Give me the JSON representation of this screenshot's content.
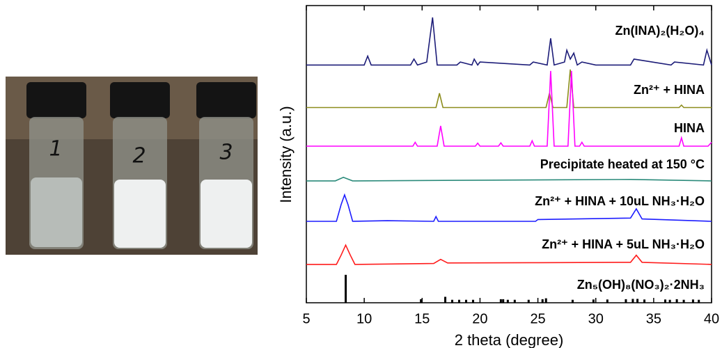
{
  "photo": {
    "vial_labels": [
      "1",
      "2",
      "3"
    ]
  },
  "chart_data": {
    "type": "line",
    "xlabel": "2 theta (degree)",
    "ylabel": "Intensity (a.u.)",
    "xlim": [
      5,
      40
    ],
    "xticks": [
      5,
      10,
      15,
      20,
      25,
      30,
      35,
      40
    ],
    "ylim": [
      0,
      100
    ],
    "series": [
      {
        "name": "Zn(INA)₂(H₂O)₄",
        "color": "#1c1c78",
        "style": "line",
        "x": [
          5,
          10,
          10.3,
          10.6,
          14,
          14.3,
          14.6,
          15.4,
          15.9,
          16.3,
          18,
          18.3,
          19.3,
          19.5,
          19.8,
          20,
          24.3,
          24.6,
          25.8,
          26.1,
          26.4,
          27.3,
          27.5,
          27.8,
          28.1,
          28.4,
          28.8,
          30,
          33,
          33.3,
          36.5,
          36.8,
          39.3,
          39.6,
          40
        ],
        "values": [
          80,
          80,
          83,
          80,
          80,
          82,
          80,
          81,
          96,
          80,
          80,
          81,
          80,
          82,
          80,
          81,
          80,
          81,
          80,
          89,
          80,
          81,
          85,
          82,
          84,
          80,
          81,
          80,
          80,
          82,
          80,
          81,
          80,
          85,
          80
        ]
      },
      {
        "name": "Zn²⁺ + HINA",
        "color": "#8c8c1c",
        "style": "line",
        "x": [
          5,
          16.2,
          16.5,
          16.8,
          25.7,
          26,
          26.3,
          27.5,
          27.8,
          28.1,
          37.2,
          37.4,
          37.6,
          40
        ],
        "values": [
          65.7,
          65.7,
          70.5,
          65.7,
          65.7,
          70.5,
          65.7,
          65.7,
          78.5,
          65.7,
          65.7,
          66.5,
          65.7,
          65.7
        ]
      },
      {
        "name": "HINA",
        "color": "#ff00ff",
        "style": "line",
        "x": [
          5,
          14.2,
          14.4,
          14.6,
          16.3,
          16.6,
          16.9,
          19.6,
          19.8,
          20,
          21.6,
          21.8,
          22,
          24.3,
          24.5,
          24.7,
          25.8,
          26.1,
          26.4,
          27.6,
          27.9,
          28.2,
          28.6,
          28.8,
          29,
          37.2,
          37.4,
          37.6,
          39.7,
          40
        ],
        "values": [
          52.7,
          52.7,
          54,
          52.7,
          52.7,
          59.5,
          52.7,
          52.7,
          53.7,
          52.7,
          52.7,
          53.8,
          52.7,
          52.7,
          54.5,
          52.7,
          52.7,
          78,
          52.7,
          52.7,
          78,
          52.7,
          52.7,
          54,
          52.7,
          52.7,
          55.5,
          52.7,
          52.7,
          54
        ]
      },
      {
        "name": "Precipitate heated at 150 °C",
        "color": "#2a8a7a",
        "style": "line",
        "x": [
          5,
          7.5,
          8.2,
          9,
          33,
          40
        ],
        "values": [
          41,
          41,
          42.2,
          41,
          41.5,
          41
        ]
      },
      {
        "name": "Zn²⁺ + HINA + 10uL NH₃·H₂O",
        "color": "#1c1cff",
        "style": "line",
        "x": [
          5,
          7.6,
          8,
          8.3,
          8.6,
          9,
          12,
          16,
          16.2,
          16.4,
          24.8,
          25,
          33,
          33.5,
          34,
          40
        ],
        "values": [
          27.4,
          27.4,
          33,
          36.3,
          33,
          27.4,
          27.6,
          27.4,
          29,
          27.4,
          27.4,
          28,
          28.5,
          31.6,
          28.2,
          27.4
        ]
      },
      {
        "name": "Zn²⁺ + HINA + 5uL NH₃·H₂O",
        "color": "#ff1c1c",
        "style": "line",
        "x": [
          5,
          7.6,
          8,
          8.4,
          8.8,
          9.2,
          16,
          16.6,
          17.2,
          25,
          33,
          33.5,
          34,
          40
        ],
        "values": [
          12.9,
          12.9,
          16,
          19.4,
          16,
          12.9,
          13.2,
          14.6,
          13.4,
          13.5,
          13.6,
          16,
          13.6,
          12.9
        ]
      },
      {
        "name": "Zn₅(OH)₈(NO₃)₂·2NH₃",
        "color": "#000000",
        "style": "stick",
        "x": [
          8.4,
          14.9,
          17,
          17.6,
          18.2,
          18.8,
          19.4,
          21.8,
          22,
          22.4,
          23,
          24.2,
          25.4,
          25.7,
          28,
          29.8,
          31,
          32.6,
          33.2,
          33.6,
          34.2,
          36,
          36.4,
          37,
          37.6,
          38.4,
          38.9
        ],
        "values": [
          9.4,
          1.2,
          2,
          1,
          1,
          1,
          1,
          1.2,
          1.2,
          1,
          1,
          1,
          1.2,
          1.5,
          1,
          1.1,
          1.1,
          1.2,
          1.3,
          1.3,
          1.1,
          1.1,
          1,
          1.2,
          1,
          1.1,
          1
        ]
      }
    ]
  }
}
